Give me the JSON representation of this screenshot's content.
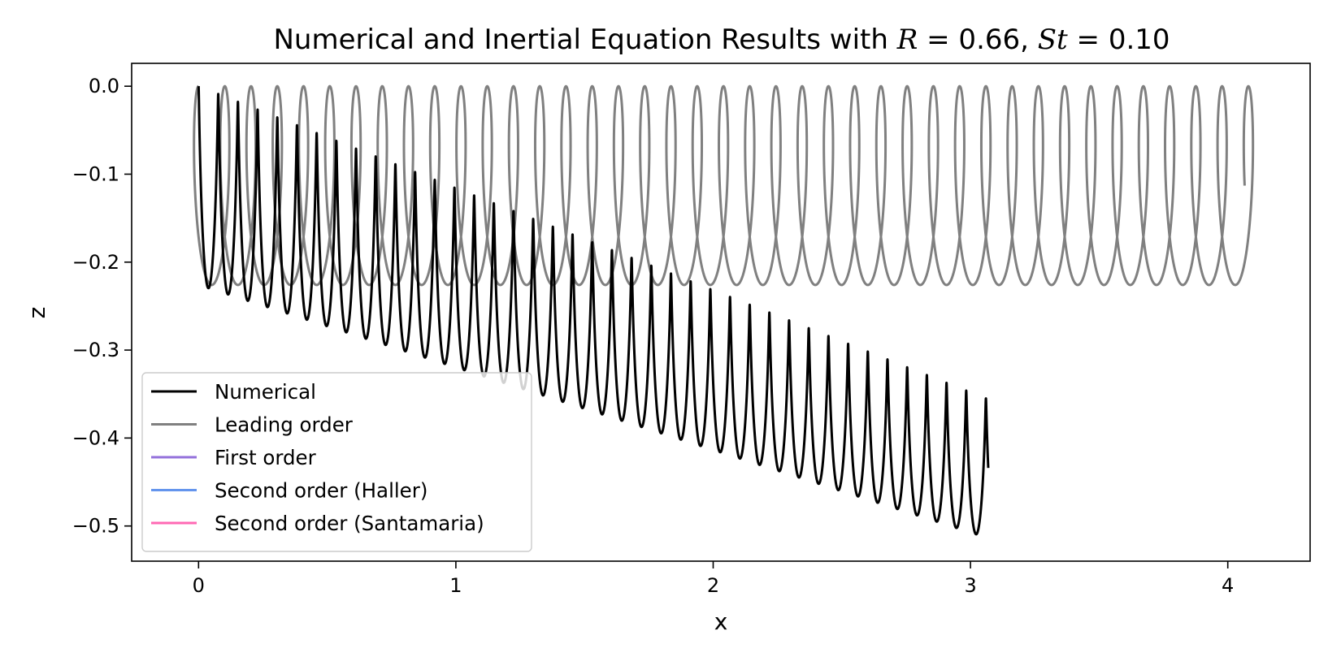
{
  "chart_data": {
    "type": "line",
    "title_plain": "Numerical and Inertial Equation Results with ",
    "title_R_sym": "R",
    "title_R_val": " = 0.66, ",
    "title_St_sym": "St",
    "title_St_val": " = 0.10",
    "xlabel": "x",
    "ylabel": "z",
    "xlim": [
      -0.26,
      4.32
    ],
    "ylim": [
      -0.54,
      0.026
    ],
    "x_ticks": [
      0,
      1,
      2,
      3,
      4
    ],
    "x_tick_labels": [
      "0",
      "1",
      "2",
      "3",
      "4"
    ],
    "y_ticks": [
      0.0,
      -0.1,
      -0.2,
      -0.3,
      -0.4,
      -0.5
    ],
    "y_tick_labels": [
      "0.0",
      "−0.1",
      "−0.2",
      "−0.3",
      "−0.4",
      "−0.5"
    ],
    "legend_position": "lower-left",
    "series": [
      {
        "name": "Numerical",
        "color": "#000000",
        "shape": "helix",
        "loops": 40,
        "x_start": 0.0,
        "x_end": 3.06,
        "x_min": -0.05,
        "x_max": 3.03,
        "z_top_start": 0.0,
        "z_top_end": -0.355,
        "z_bottom_start": -0.226,
        "z_bottom_end": -0.513,
        "z_end": -0.42
      },
      {
        "name": "Leading order",
        "color": "#808080",
        "shape": "helix",
        "loops": 40,
        "x_start": 0.0,
        "x_end": 4.08,
        "x_min": -0.05,
        "x_max": 4.11,
        "z_top_start": 0.0,
        "z_top_end": 0.0,
        "z_bottom_start": -0.226,
        "z_bottom_end": -0.226,
        "z_end": -0.005
      },
      {
        "name": "First order",
        "color": "#9370DB"
      },
      {
        "name": "Second order (Haller)",
        "color": "#6495ED"
      },
      {
        "name": "Second order (Santamaria)",
        "color": "#FF69B4"
      }
    ]
  }
}
